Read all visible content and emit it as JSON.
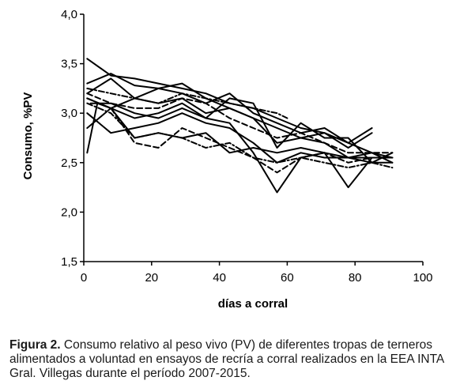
{
  "chart_data": {
    "type": "line",
    "ylabel": "Consumo, %PV",
    "xlabel": "días a corral",
    "xlim": [
      0,
      100
    ],
    "ylim": [
      1.5,
      4.0
    ],
    "x_ticks": [
      "0",
      "20",
      "40",
      "60",
      "80",
      "100"
    ],
    "y_ticks": [
      "1,5",
      "2,0",
      "2,5",
      "3,0",
      "3,5",
      "4,0"
    ],
    "grid": false,
    "legend": "none",
    "line_color": "#000000",
    "series": [
      {
        "style": "solid",
        "x": [
          1,
          8,
          15,
          22,
          29,
          36,
          43,
          50,
          57,
          64,
          71,
          78,
          85,
          91
        ],
        "y": [
          3.55,
          3.38,
          3.35,
          3.3,
          3.25,
          3.2,
          3.1,
          3.05,
          2.95,
          2.85,
          2.8,
          2.7,
          2.6,
          2.5
        ]
      },
      {
        "style": "solid",
        "x": [
          1,
          8,
          15,
          22,
          29,
          36,
          43,
          50,
          57,
          64,
          71,
          78,
          85,
          91
        ],
        "y": [
          3.3,
          3.4,
          3.28,
          3.25,
          3.3,
          3.15,
          3.05,
          2.95,
          2.85,
          2.75,
          2.7,
          2.55,
          2.55,
          2.55
        ]
      },
      {
        "style": "solid",
        "x": [
          1,
          8,
          15,
          22,
          29,
          36,
          43,
          50,
          57,
          64,
          71,
          78,
          85
        ],
        "y": [
          3.2,
          3.35,
          3.15,
          3.25,
          3.2,
          3.1,
          3.2,
          3.0,
          2.9,
          2.8,
          2.85,
          2.7,
          2.85
        ]
      },
      {
        "style": "solid",
        "x": [
          1,
          4,
          8,
          15,
          22,
          29,
          36,
          43,
          50,
          57,
          64,
          71,
          78,
          85
        ],
        "y": [
          2.6,
          3.1,
          3.05,
          2.95,
          3.0,
          3.1,
          2.95,
          2.9,
          2.6,
          2.2,
          2.55,
          2.6,
          2.25,
          2.55
        ]
      },
      {
        "style": "solid",
        "x": [
          1,
          8,
          15,
          22,
          29,
          36,
          43,
          50,
          57,
          64,
          71,
          78,
          85,
          91
        ],
        "y": [
          3.0,
          2.8,
          2.85,
          2.9,
          3.0,
          2.9,
          2.85,
          2.7,
          2.5,
          2.6,
          2.55,
          2.55,
          2.5,
          2.5
        ]
      },
      {
        "style": "solid",
        "x": [
          1,
          8,
          15,
          22,
          29,
          36,
          43,
          50,
          57,
          64,
          71,
          78,
          85,
          91
        ],
        "y": [
          3.15,
          3.05,
          2.75,
          2.8,
          2.75,
          2.8,
          2.6,
          2.65,
          2.6,
          2.65,
          2.6,
          2.55,
          2.6,
          2.55
        ]
      },
      {
        "style": "solid",
        "x": [
          1,
          8,
          15,
          22,
          29,
          36,
          43,
          50,
          57,
          64,
          71,
          78,
          85
        ],
        "y": [
          2.85,
          3.05,
          3.15,
          3.1,
          3.15,
          3.0,
          3.05,
          2.95,
          2.7,
          2.75,
          2.8,
          2.65,
          2.8
        ]
      },
      {
        "style": "solid",
        "x": [
          2,
          8,
          15,
          22,
          29,
          36,
          43,
          50,
          57,
          64,
          71,
          78,
          85,
          91
        ],
        "y": [
          3.1,
          3.1,
          3.0,
          2.95,
          3.05,
          2.95,
          3.15,
          3.1,
          2.65,
          2.9,
          2.75,
          2.75,
          2.5,
          2.6
        ]
      },
      {
        "style": "dashed",
        "x": [
          1,
          8,
          15,
          22,
          29,
          36,
          43,
          50,
          57,
          64,
          71,
          78,
          85,
          91
        ],
        "y": [
          3.15,
          3.05,
          2.7,
          2.65,
          2.85,
          2.75,
          2.65,
          2.55,
          2.4,
          2.55,
          2.6,
          2.5,
          2.55,
          2.55
        ]
      },
      {
        "style": "dashed",
        "x": [
          1,
          8,
          15,
          22,
          29,
          36,
          43,
          50,
          57,
          64,
          71,
          78,
          85,
          91
        ],
        "y": [
          3.2,
          3.1,
          3.05,
          3.05,
          3.15,
          3.1,
          2.95,
          2.85,
          2.75,
          2.8,
          2.7,
          2.6,
          2.6,
          2.6
        ]
      },
      {
        "style": "dashdot",
        "x": [
          1,
          8,
          15,
          22,
          29,
          36,
          43,
          50,
          57,
          64,
          71,
          78,
          85,
          91
        ],
        "y": [
          3.1,
          3.0,
          2.75,
          2.8,
          2.75,
          2.65,
          2.7,
          2.55,
          2.5,
          2.55,
          2.5,
          2.45,
          2.5,
          2.45
        ]
      },
      {
        "style": "dashdot",
        "x": [
          1,
          8,
          15,
          22,
          29,
          36,
          43,
          50,
          57,
          60
        ],
        "y": [
          3.25,
          3.2,
          3.15,
          3.1,
          3.2,
          3.15,
          3.1,
          3.05,
          3.0,
          2.95
        ]
      }
    ]
  },
  "caption": {
    "label": "Figura 2.",
    "text": " Consumo relativo al peso vivo (PV) de diferentes tropas de terneros alimentados a voluntad en ensayos de recría a corral realizados en la EEA INTA Gral. Villegas durante el período 2007-2015."
  }
}
